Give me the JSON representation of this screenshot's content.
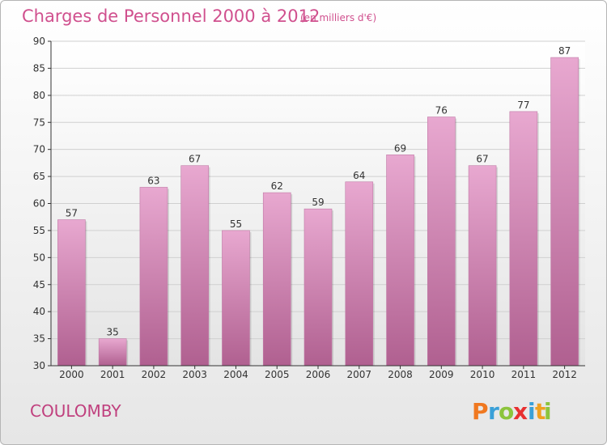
{
  "header": {
    "title": "Charges de Personnel 2000 à 2012",
    "unit": "(en milliers d'€)"
  },
  "footer": {
    "commune": "COULOMBY",
    "logo_letters": [
      "P",
      "r",
      "o",
      "x",
      "i",
      "t",
      "i"
    ],
    "logo_colors": [
      "#f07820",
      "#3aa0d8",
      "#8cc43c",
      "#e83030",
      "#3aa0d8",
      "#f0a020",
      "#8cc43c"
    ]
  },
  "colors": {
    "bar_top": "#e8a8d0",
    "bar_bottom": "#b06090",
    "plot_bg_top": "#ffffff",
    "plot_bg_bottom": "#e4e4e4",
    "grid": "#d0d0d0",
    "axis": "#333333"
  },
  "chart_data": {
    "type": "bar",
    "title": "Charges de Personnel 2000 à 2012",
    "categories": [
      "2000",
      "2001",
      "2002",
      "2003",
      "2004",
      "2005",
      "2006",
      "2007",
      "2008",
      "2009",
      "2010",
      "2011",
      "2012"
    ],
    "values": [
      57,
      35,
      63,
      67,
      55,
      62,
      59,
      64,
      69,
      76,
      67,
      77,
      87
    ],
    "value_labels": [
      "57",
      "35",
      "63",
      "67",
      "55",
      "62",
      "59",
      "64",
      "69",
      "76",
      "67",
      "77",
      "87"
    ],
    "yticks": [
      30,
      35,
      40,
      45,
      50,
      55,
      60,
      65,
      70,
      75,
      80,
      85,
      90
    ],
    "ytick_labels": [
      "30",
      "35",
      "40",
      "45",
      "50",
      "55",
      "60",
      "65",
      "70",
      "75",
      "80",
      "85",
      "90"
    ],
    "ylim": [
      30,
      90
    ],
    "grid": true,
    "xlabel": "",
    "ylabel": ""
  }
}
